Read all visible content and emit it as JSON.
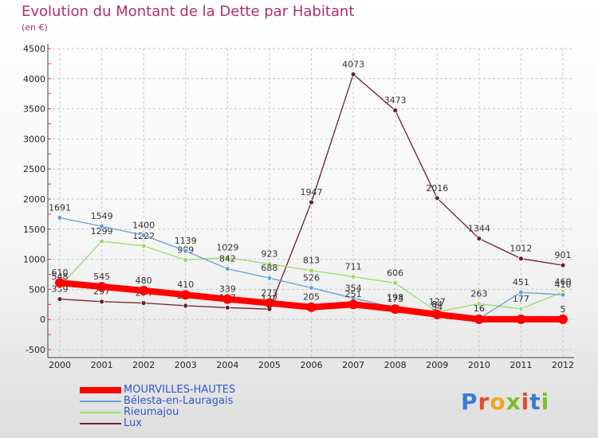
{
  "header": {
    "title": "Evolution du Montant de la Dette par Habitant",
    "subtitle": "(en €)"
  },
  "logo": {
    "text": "Proxiti",
    "letter_colors": [
      "#3a7bd5",
      "#e8492e",
      "#f2a51f",
      "#7bbf2a",
      "#e8492e",
      "#3a7bd5",
      "#7bbf2a"
    ]
  },
  "chart_data": {
    "type": "line",
    "x": [
      "2000",
      "2001",
      "2002",
      "2003",
      "2004",
      "2005",
      "2006",
      "2007",
      "2008",
      "2009",
      "2010",
      "2011",
      "2012"
    ],
    "ylim": [
      -500,
      4500
    ],
    "yticks": [
      "-500",
      "0",
      "500",
      "1000",
      "1500",
      "2000",
      "2500",
      "3000",
      "3500",
      "4000",
      "4500"
    ],
    "ytick_values": [
      -500,
      0,
      500,
      1000,
      1500,
      2000,
      2500,
      3000,
      3500,
      4000,
      4500
    ],
    "grid": true,
    "legend_position": "bottom-left",
    "series": [
      {
        "name": "Lux",
        "color": "#6b1f2a",
        "values": [
          339,
          297,
          274,
          229,
          197,
          172,
          1947,
          4073,
          3473,
          2016,
          1344,
          1012,
          901
        ],
        "labels": [
          "339",
          "297",
          "274",
          "229",
          "197",
          "172",
          "1947",
          "4073",
          "3473",
          "2016",
          "1344",
          "1012",
          "901"
        ]
      },
      {
        "name": "Rieumajou",
        "color": "#99dd66",
        "values": [
          548,
          1299,
          1222,
          989,
          1029,
          923,
          813,
          711,
          606,
          127,
          263,
          177,
          460
        ],
        "labels": [
          "548",
          "1299",
          "1222",
          "989",
          "1029",
          "923",
          "813",
          "711",
          "606",
          "127",
          "263",
          "177",
          "460"
        ]
      },
      {
        "name": "Bélesta-en-Lauragais",
        "color": "#6a9fd4",
        "values": [
          1691,
          1549,
          1400,
          1139,
          842,
          688,
          526,
          354,
          198,
          34,
          16,
          451,
          410
        ],
        "labels": [
          "1691",
          "1549",
          "1400",
          "1139",
          "842",
          "688",
          "526",
          "354",
          "198",
          "34",
          "16",
          "451",
          "410"
        ]
      },
      {
        "name": "MOURVILLES-HAUTES",
        "color": "#ff0000",
        "values": [
          610,
          545,
          480,
          410,
          339,
          273,
          205,
          251,
          173,
          84,
          5,
          5,
          5
        ],
        "labels": [
          "610",
          "545",
          "480",
          "410",
          "339",
          "273",
          "205",
          "251",
          "173",
          "84",
          "",
          "",
          "5"
        ]
      }
    ]
  },
  "legend": {
    "items": [
      {
        "label": "MOURVILLES-HAUTES",
        "color": "#ff0000"
      },
      {
        "label": "Bélesta-en-Lauragais",
        "color": "#6a9fd4"
      },
      {
        "label": "Rieumajou",
        "color": "#99dd66"
      },
      {
        "label": "Lux",
        "color": "#6b1f2a"
      }
    ]
  }
}
